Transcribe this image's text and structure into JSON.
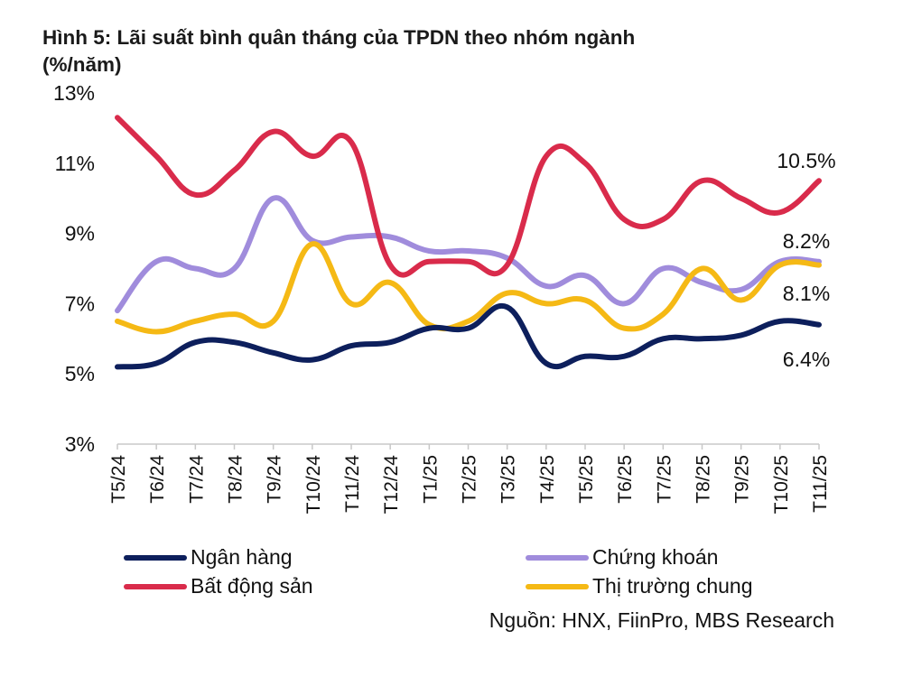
{
  "chart_data": {
    "type": "line",
    "title": "Hình 5: Lãi suất bình quân tháng của TPDN theo nhóm ngành",
    "subtitle": "(%/năm)",
    "xlabel": "",
    "ylabel": "",
    "ylim": [
      3,
      13
    ],
    "yticks": [
      3,
      5,
      7,
      9,
      11,
      13
    ],
    "ytick_labels": [
      "3%",
      "5%",
      "7%",
      "9%",
      "11%",
      "13%"
    ],
    "grid": false,
    "legend_position": "bottom",
    "categories": [
      "T5/24",
      "T6/24",
      "T7/24",
      "T8/24",
      "T9/24",
      "T10/24",
      "T11/24",
      "T12/24",
      "T1/25",
      "T2/25",
      "T3/25",
      "T4/25",
      "T5/25",
      "T6/25",
      "T7/25",
      "T8/25",
      "T9/25",
      "T10/25",
      "T11/25"
    ],
    "series": [
      {
        "name": "Ngân hàng",
        "color": "#0d1f5c",
        "values": [
          5.2,
          5.3,
          5.9,
          5.9,
          5.6,
          5.4,
          5.8,
          5.9,
          6.3,
          6.3,
          6.9,
          5.3,
          5.5,
          5.5,
          6.0,
          6.0,
          6.1,
          6.5,
          6.4
        ],
        "end_label": "6.4%"
      },
      {
        "name": "Bất động sản",
        "color": "#d92b4b",
        "values": [
          12.3,
          11.2,
          10.1,
          10.8,
          11.9,
          11.2,
          11.6,
          8.1,
          8.2,
          8.2,
          8.1,
          11.2,
          11.0,
          9.4,
          9.4,
          10.5,
          10.0,
          9.6,
          10.5
        ],
        "end_label": "10.5%"
      },
      {
        "name": "Chứng khoán",
        "color": "#a08cdc",
        "values": [
          6.8,
          8.2,
          8.0,
          8.0,
          10.0,
          8.8,
          8.9,
          8.9,
          8.5,
          8.5,
          8.3,
          7.5,
          7.8,
          7.0,
          8.0,
          7.6,
          7.4,
          8.2,
          8.2
        ],
        "end_label": "8.2%"
      },
      {
        "name": "Thị trường chung",
        "color": "#f5b915",
        "values": [
          6.5,
          6.2,
          6.5,
          6.7,
          6.5,
          8.7,
          7.0,
          7.6,
          6.4,
          6.5,
          7.3,
          7.0,
          7.1,
          6.3,
          6.7,
          8.0,
          7.1,
          8.1,
          8.1
        ],
        "end_label": "8.1%"
      }
    ],
    "source": "Nguồn: HNX, FiinPro, MBS Research"
  }
}
